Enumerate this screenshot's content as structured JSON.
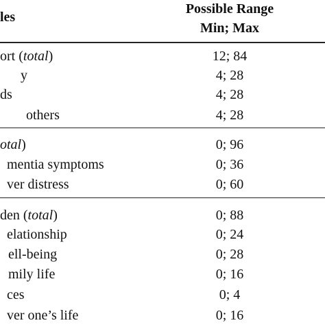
{
  "header": {
    "variable": "les",
    "range_line1": "Possible Range",
    "range_line2": "Min; Max"
  },
  "groups": [
    {
      "rows": [
        {
          "label": "ort (",
          "label_italic": "total",
          "label_end": ")",
          "range": "12; 84"
        },
        {
          "label": "y",
          "range": "4; 28"
        },
        {
          "label": "ds",
          "range": "4; 28"
        },
        {
          "label": "others",
          "range": "4; 28"
        }
      ]
    },
    {
      "rows": [
        {
          "label_italic": "otal",
          "label_end": ")",
          "range": "0; 96"
        },
        {
          "label": "mentia symptoms",
          "range": "0; 36"
        },
        {
          "label": "ver distress",
          "range": "0; 60"
        }
      ]
    },
    {
      "rows": [
        {
          "label": "den (",
          "label_italic": "total",
          "label_end": ")",
          "range": "0; 88"
        },
        {
          "label": "elationship",
          "range": "0; 24"
        },
        {
          "label": "ell-being",
          "range": "0; 28"
        },
        {
          "label": "mily life",
          "range": "0; 16"
        },
        {
          "label": "ces",
          "range": "0; 4"
        },
        {
          "label": "ver one’s life",
          "range": "0; 16"
        }
      ]
    }
  ]
}
